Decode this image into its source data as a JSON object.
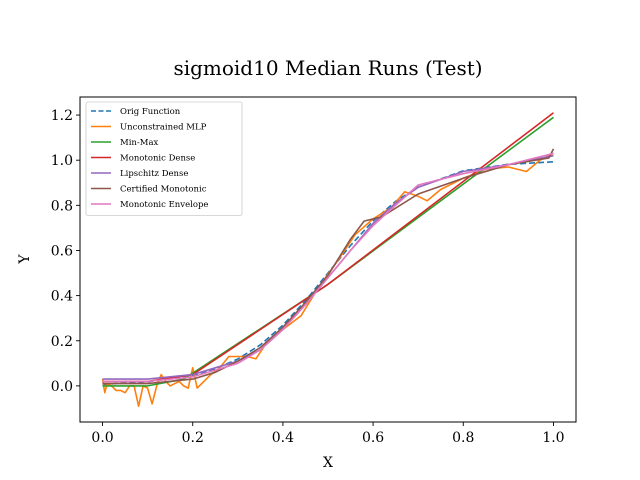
{
  "chart_data": {
    "type": "line",
    "title": "sigmoid10 Median Runs (Test)",
    "xlabel": "X",
    "ylabel": "Y",
    "xlim": [
      -0.05,
      1.05
    ],
    "ylim": [
      -0.16,
      1.28
    ],
    "xticks": [
      "0.0",
      "0.2",
      "0.4",
      "0.6",
      "0.8",
      "1.0"
    ],
    "yticks": [
      "0.0",
      "0.2",
      "0.4",
      "0.6",
      "0.8",
      "1.0",
      "1.2"
    ],
    "grid": false,
    "legend_position": "upper left",
    "series": [
      {
        "name": "Orig Function",
        "color": "#1f77b4",
        "dashed": true,
        "x": [
          0.0,
          0.1,
          0.2,
          0.25,
          0.3,
          0.35,
          0.4,
          0.45,
          0.5,
          0.55,
          0.6,
          0.65,
          0.7,
          0.8,
          0.9,
          1.0
        ],
        "y": [
          0.007,
          0.018,
          0.047,
          0.076,
          0.119,
          0.182,
          0.269,
          0.378,
          0.5,
          0.622,
          0.731,
          0.818,
          0.881,
          0.953,
          0.982,
          0.993
        ]
      },
      {
        "name": "Unconstrained MLP",
        "color": "#ff7f0e",
        "dashed": false,
        "x": [
          0.0,
          0.005,
          0.01,
          0.02,
          0.03,
          0.04,
          0.05,
          0.06,
          0.07,
          0.08,
          0.09,
          0.1,
          0.11,
          0.12,
          0.13,
          0.14,
          0.15,
          0.16,
          0.17,
          0.18,
          0.19,
          0.2,
          0.21,
          0.22,
          0.24,
          0.26,
          0.28,
          0.3,
          0.32,
          0.34,
          0.36,
          0.4,
          0.44,
          0.48,
          0.52,
          0.56,
          0.6,
          0.64,
          0.67,
          0.7,
          0.72,
          0.75,
          0.8,
          0.85,
          0.9,
          0.94,
          0.97,
          1.0
        ],
        "y": [
          0.03,
          -0.03,
          0.01,
          0.0,
          -0.02,
          -0.02,
          -0.03,
          0.0,
          0.0,
          -0.09,
          0.0,
          -0.01,
          -0.08,
          0.0,
          0.05,
          0.02,
          0.0,
          0.01,
          0.02,
          0.0,
          -0.01,
          0.08,
          -0.01,
          0.01,
          0.05,
          0.08,
          0.13,
          0.13,
          0.13,
          0.12,
          0.18,
          0.25,
          0.31,
          0.44,
          0.55,
          0.67,
          0.74,
          0.79,
          0.86,
          0.84,
          0.82,
          0.87,
          0.92,
          0.96,
          0.97,
          0.95,
          1.0,
          1.03
        ]
      },
      {
        "name": "Min-Max",
        "color": "#2ca02c",
        "dashed": false,
        "x": [
          0.0,
          0.1,
          0.18,
          0.5,
          1.0
        ],
        "y": [
          0.0,
          0.0,
          0.03,
          0.45,
          1.19
        ]
      },
      {
        "name": "Monotonic Dense",
        "color": "#d62728",
        "dashed": false,
        "x": [
          0.0,
          0.1,
          0.2,
          0.5,
          1.0
        ],
        "y": [
          0.02,
          0.02,
          0.05,
          0.45,
          1.21
        ]
      },
      {
        "name": "Lipschitz Dense",
        "color": "#9467bd",
        "dashed": false,
        "x": [
          0.0,
          0.1,
          0.2,
          0.25,
          0.3,
          0.35,
          0.4,
          0.45,
          0.5,
          0.55,
          0.6,
          0.65,
          0.7,
          0.8,
          0.9,
          1.0
        ],
        "y": [
          0.03,
          0.03,
          0.05,
          0.08,
          0.11,
          0.16,
          0.25,
          0.36,
          0.48,
          0.6,
          0.72,
          0.81,
          0.88,
          0.95,
          0.98,
          1.02
        ]
      },
      {
        "name": "Certified Monotonic",
        "color": "#8c564b",
        "dashed": false,
        "x": [
          0.0,
          0.1,
          0.2,
          0.25,
          0.3,
          0.35,
          0.4,
          0.45,
          0.5,
          0.55,
          0.58,
          0.62,
          0.7,
          0.8,
          0.9,
          0.99,
          1.0
        ],
        "y": [
          0.01,
          0.01,
          0.03,
          0.06,
          0.11,
          0.17,
          0.26,
          0.37,
          0.49,
          0.65,
          0.73,
          0.75,
          0.85,
          0.92,
          0.98,
          1.01,
          1.05
        ]
      },
      {
        "name": "Monotonic Envelope",
        "color": "#e377c2",
        "dashed": false,
        "x": [
          0.0,
          0.1,
          0.2,
          0.25,
          0.3,
          0.35,
          0.4,
          0.45,
          0.5,
          0.55,
          0.6,
          0.65,
          0.7,
          0.8,
          0.9,
          1.0
        ],
        "y": [
          0.02,
          0.02,
          0.04,
          0.07,
          0.1,
          0.16,
          0.25,
          0.36,
          0.48,
          0.6,
          0.71,
          0.8,
          0.89,
          0.94,
          0.98,
          1.03
        ]
      }
    ]
  }
}
